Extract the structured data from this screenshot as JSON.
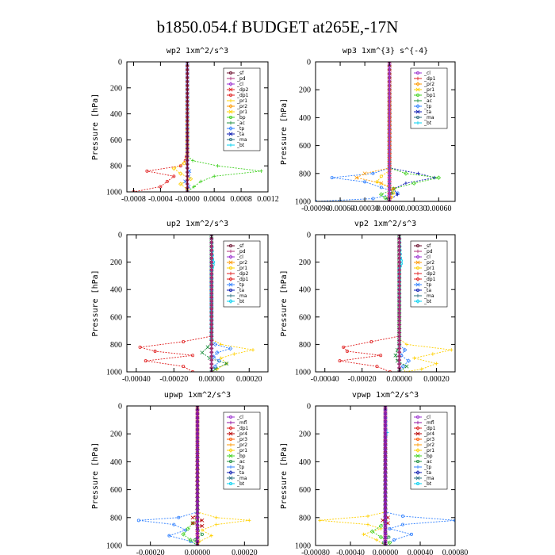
{
  "figure": {
    "title": "b1850.054.f  BUDGET at265E,-17N"
  },
  "colors": {
    "_sf": "#6a0d2b",
    "_pd": "#b0307a",
    "_cl": "#9b30d0",
    "_dp1": "#e02020",
    "_dp2": "#e02020",
    "_pr1": "#ffd000",
    "_pr2": "#ff9900",
    "_pr3": "#ff5a00",
    "_pr4": "#b80000",
    "_bp": "#40d020",
    "_bp1": "#40d020",
    "_ac": "#1f8f3f",
    "_tp": "#3080ff",
    "_ta": "#0a1ab0",
    "_ma": "#2a6f7f",
    "_bt": "#00d0f0",
    "_mfl": "#9010a0"
  },
  "chart_data": [
    {
      "type": "line",
      "title": "wp2   1xm^2/s^3",
      "ylabel": "Pressure [hPa]",
      "xlim": [
        -0.0009,
        0.0012
      ],
      "ylim": [
        1000,
        0
      ],
      "xticks": [
        -0.0008,
        -0.0004,
        0,
        0.0004,
        0.0008,
        0.0012
      ],
      "xtick_labels": [
        "-0.0008",
        "-0.0004",
        "-0.0000",
        "0.0004",
        "0.0008",
        "0.0012"
      ],
      "yticks": [
        0,
        200,
        400,
        600,
        800,
        1000
      ],
      "ytick_labels": [
        "0",
        "200",
        "400",
        "600",
        "800",
        "1000"
      ],
      "legend": [
        "_sf",
        "_pd",
        "_cl",
        "_dp2",
        "_dp1",
        "_pr1",
        "_pr2",
        "_pr1",
        "_bp",
        "_ac",
        "_tp",
        "_ta",
        "_ma",
        "_bt"
      ],
      "series": [
        {
          "name": "_dp1",
          "y": [
            0,
            700,
            760,
            800,
            840,
            880,
            920,
            960,
            1000
          ],
          "values": [
            0,
            0,
            -3e-05,
            -0.0001,
            -0.0006,
            -0.0002,
            -0.0003,
            -0.0004,
            -0.0008
          ]
        },
        {
          "name": "_bp",
          "y": [
            0,
            720,
            760,
            800,
            840,
            880,
            920,
            960,
            1000
          ],
          "values": [
            0,
            0,
            8e-05,
            0.00045,
            0.0011,
            0.0004,
            0.0002,
            0.0001,
            0
          ]
        },
        {
          "name": "_pr1",
          "y": [
            0,
            740,
            780,
            820,
            860,
            900,
            940,
            980,
            1000
          ],
          "values": [
            0,
            0,
            -5e-05,
            -0.0002,
            -0.0001,
            5e-05,
            -0.0001,
            0,
            0
          ]
        },
        {
          "name": "_tp",
          "y": [
            0,
            800,
            840,
            880,
            920,
            960,
            1000
          ],
          "values": [
            0,
            0,
            3e-05,
            2e-05,
            -3e-05,
            2e-05,
            0
          ]
        },
        {
          "name": "_pd",
          "y": [
            0,
            1000
          ],
          "values": [
            0,
            0
          ]
        },
        {
          "name": "_sf",
          "y": [
            0,
            1000
          ],
          "values": [
            0,
            0
          ]
        }
      ]
    },
    {
      "type": "line",
      "title": "wp3   1xm^{3} s^{-4}",
      "ylabel": "Pressure [hPa]",
      "xlim": [
        -0.0009,
        0.0008
      ],
      "ylim": [
        1000,
        0
      ],
      "xticks": [
        -0.0009,
        -0.0006,
        -0.0003,
        0,
        0.0003,
        0.0006
      ],
      "xtick_labels": [
        "-0.00090",
        "-0.00060",
        "-0.00030",
        "0.00000",
        "0.00030",
        "0.00060"
      ],
      "yticks": [
        0,
        200,
        400,
        600,
        800,
        1000
      ],
      "ytick_labels": [
        "0",
        "200",
        "400",
        "600",
        "800",
        "1000"
      ],
      "legend": [
        "_cl",
        "_dp1",
        "_pr2",
        "_pr1",
        "_bp1",
        "_ac",
        "_tp",
        "_ta",
        "_ma",
        "_bt"
      ],
      "series": [
        {
          "name": "_tp",
          "y": [
            0,
            760,
            800,
            830,
            860,
            900,
            940,
            980,
            1000
          ],
          "values": [
            0,
            0,
            -0.0002,
            -0.0007,
            -0.0003,
            -0.0001,
            0.0001,
            -0.0002,
            -0.0009
          ]
        },
        {
          "name": "_ta",
          "y": [
            0,
            760,
            800,
            830,
            870,
            910,
            950,
            990,
            1000
          ],
          "values": [
            0,
            0,
            0.00035,
            0.00055,
            0.0002,
            5e-05,
            0.0001,
            0,
            0
          ]
        },
        {
          "name": "_bp1",
          "y": [
            0,
            760,
            800,
            830,
            870,
            910,
            950,
            1000
          ],
          "values": [
            0,
            0,
            0.0002,
            0.0006,
            0.0003,
            5e-05,
            -0.0001,
            0
          ]
        },
        {
          "name": "_pr2",
          "y": [
            0,
            760,
            800,
            830,
            870,
            910,
            950,
            1000
          ],
          "values": [
            0,
            0,
            -0.0003,
            -0.0004,
            -0.0001,
            5e-05,
            0,
            0
          ]
        },
        {
          "name": "_pr1",
          "y": [
            0,
            780,
            820,
            860,
            900,
            940,
            1000
          ],
          "values": [
            0,
            0,
            -0.0001,
            -0.00015,
            0,
            5e-05,
            0
          ]
        },
        {
          "name": "_ac",
          "y": [
            0,
            900,
            940,
            980,
            1000
          ],
          "values": [
            0,
            0,
            3e-05,
            -3e-05,
            0
          ]
        },
        {
          "name": "_dp1",
          "y": [
            0,
            1000
          ],
          "values": [
            0,
            0
          ]
        },
        {
          "name": "_cl",
          "y": [
            0,
            1000
          ],
          "values": [
            0,
            0
          ]
        }
      ]
    },
    {
      "type": "line",
      "title": "up2   1xm^2/s^3",
      "ylabel": "Pressure [hPa]",
      "xlim": [
        -0.00045,
        0.0003
      ],
      "ylim": [
        1000,
        0
      ],
      "xticks": [
        -0.0004,
        -0.0002,
        0,
        0.0002
      ],
      "xtick_labels": [
        "-0.00040",
        "-0.00020",
        "0.00000",
        "0.00020"
      ],
      "yticks": [
        0,
        200,
        400,
        600,
        800,
        1000
      ],
      "ytick_labels": [
        "0",
        "200",
        "400",
        "600",
        "800",
        "1000"
      ],
      "legend": [
        "_sf",
        "_pd",
        "_cl",
        "_pr2",
        "_pr1",
        "_dp2",
        "_dp1",
        "_tp",
        "_ta",
        "_ma",
        "_bt"
      ],
      "series": [
        {
          "name": "_dp2",
          "y": [
            0,
            740,
            780,
            820,
            850,
            880,
            920,
            960,
            1000
          ],
          "values": [
            0,
            0,
            -0.00015,
            -0.00038,
            -0.0003,
            -0.0001,
            -0.00035,
            -0.00015,
            -0.0001
          ]
        },
        {
          "name": "_pr1",
          "y": [
            0,
            760,
            800,
            840,
            870,
            900,
            940,
            980,
            1000
          ],
          "values": [
            0,
            0,
            5e-05,
            0.00022,
            0.00012,
            5e-05,
            8e-05,
            3e-05,
            0
          ]
        },
        {
          "name": "_tp",
          "y": [
            0,
            760,
            800,
            830,
            860,
            890,
            920,
            960,
            1000
          ],
          "values": [
            0,
            0,
            2e-05,
            0.0001,
            3e-05,
            1e-05,
            4e-05,
            2e-05,
            0
          ]
        },
        {
          "name": "_ac",
          "y": [
            0,
            780,
            820,
            860,
            900,
            940,
            980,
            1000
          ],
          "values": [
            0,
            0,
            -2e-05,
            -5e-05,
            -1e-05,
            8e-05,
            2e-05,
            0
          ]
        },
        {
          "name": "_bt",
          "y": [
            0,
            180,
            200,
            220,
            240,
            260,
            1000
          ],
          "values": [
            0,
            5e-06,
            1e-05,
            8e-06,
            4e-06,
            0,
            0
          ]
        },
        {
          "name": "_sf",
          "y": [
            0,
            1000
          ],
          "values": [
            0,
            0
          ]
        },
        {
          "name": "_pd",
          "y": [
            0,
            1000
          ],
          "values": [
            0,
            0
          ]
        }
      ]
    },
    {
      "type": "line",
      "title": "vp2   1xm^2/s^3",
      "ylabel": "Pressure [hPa]",
      "xlim": [
        -0.00045,
        0.0003
      ],
      "ylim": [
        1000,
        0
      ],
      "xticks": [
        -0.0004,
        -0.0002,
        0,
        0.0002
      ],
      "xtick_labels": [
        "-0.00040",
        "-0.00020",
        "0.00000",
        "0.00020"
      ],
      "yticks": [
        0,
        200,
        400,
        600,
        800,
        1000
      ],
      "ytick_labels": [
        "0",
        "200",
        "400",
        "600",
        "800",
        "1000"
      ],
      "legend": [
        "_sf",
        "_pd",
        "_cl",
        "_pr2",
        "_pr1",
        "_dp2",
        "_dp1",
        "_tp",
        "_ta",
        "_ma",
        "_bt"
      ],
      "series": [
        {
          "name": "_dp2",
          "y": [
            0,
            740,
            780,
            820,
            850,
            880,
            920,
            960,
            1000
          ],
          "values": [
            0,
            0,
            -0.00015,
            -0.0003,
            -0.00028,
            -0.0001,
            -0.00032,
            -0.00012,
            -5e-05
          ]
        },
        {
          "name": "_pr1",
          "y": [
            0,
            760,
            800,
            840,
            870,
            900,
            940,
            980,
            1000
          ],
          "values": [
            0,
            0,
            4e-05,
            0.00028,
            0.00018,
            8e-05,
            0.0002,
            0.00012,
            3e-05
          ]
        },
        {
          "name": "_tp",
          "y": [
            0,
            800,
            840,
            880,
            920,
            960,
            1000
          ],
          "values": [
            0,
            0,
            3e-05,
            1e-05,
            5e-05,
            2e-05,
            0
          ]
        },
        {
          "name": "_ac",
          "y": [
            0,
            800,
            840,
            880,
            920,
            960,
            1000
          ],
          "values": [
            0,
            0,
            -1e-05,
            -2e-05,
            -1e-05,
            4e-05,
            0
          ]
        },
        {
          "name": "_bt",
          "y": [
            0,
            170,
            190,
            210,
            230,
            250,
            1000
          ],
          "values": [
            0,
            6e-06,
            1e-05,
            1e-05,
            5e-06,
            0,
            0
          ]
        },
        {
          "name": "_sf",
          "y": [
            0,
            1000
          ],
          "values": [
            0,
            0
          ]
        },
        {
          "name": "_pd",
          "y": [
            0,
            1000
          ],
          "values": [
            0,
            0
          ]
        }
      ]
    },
    {
      "type": "line",
      "title": "upwp   1xm^2/s^3",
      "ylabel": "Pressure [hPa]",
      "xlim": [
        -0.0003,
        0.0003
      ],
      "ylim": [
        1000,
        0
      ],
      "xticks": [
        -0.0002,
        0,
        0.0002
      ],
      "xtick_labels": [
        "-0.00020",
        "0.00000",
        "0.00020"
      ],
      "yticks": [
        0,
        200,
        400,
        600,
        800,
        1000
      ],
      "ytick_labels": [
        "0",
        "200",
        "400",
        "600",
        "800",
        "1000"
      ],
      "legend": [
        "_cl",
        "_mfl",
        "_dp1",
        "_pr4",
        "_pr3",
        "_pr2",
        "_pr1",
        "_bp",
        "_ac",
        "_tp",
        "_ta",
        "_ma",
        "_bt"
      ],
      "series": [
        {
          "name": "_tp",
          "y": [
            0,
            760,
            800,
            820,
            850,
            890,
            930,
            970,
            1000
          ],
          "values": [
            0,
            0,
            -8e-05,
            -0.00025,
            -0.0001,
            -5e-05,
            -0.00012,
            -3e-05,
            0
          ]
        },
        {
          "name": "_pr1",
          "y": [
            0,
            760,
            800,
            820,
            850,
            890,
            930,
            970,
            1000
          ],
          "values": [
            0,
            0,
            8e-05,
            0.00022,
            8e-05,
            2e-05,
            6e-05,
            1e-05,
            0
          ]
        },
        {
          "name": "_bp",
          "y": [
            0,
            800,
            840,
            880,
            920,
            960,
            1000
          ],
          "values": [
            0,
            0,
            -2e-05,
            -4e-05,
            -6e-05,
            -3e-05,
            0
          ]
        },
        {
          "name": "_pr4",
          "y": [
            0,
            780,
            800,
            820,
            840,
            860,
            880,
            1000
          ],
          "values": [
            0,
            0,
            -2e-05,
            2e-05,
            -2e-05,
            2e-05,
            0,
            0
          ]
        },
        {
          "name": "_ac",
          "y": [
            0,
            880,
            920,
            960,
            1000
          ],
          "values": [
            0,
            0,
            2e-05,
            -1e-05,
            0
          ]
        },
        {
          "name": "_cl",
          "y": [
            0,
            1000
          ],
          "values": [
            0,
            0
          ]
        },
        {
          "name": "_mfl",
          "y": [
            0,
            1000
          ],
          "values": [
            0,
            0
          ]
        }
      ]
    },
    {
      "type": "line",
      "title": "vpwp   1xm^2/s^3",
      "ylabel": "Pressure [hPa]",
      "xlim": [
        -0.0008,
        0.0008
      ],
      "ylim": [
        1000,
        0
      ],
      "xticks": [
        -0.0008,
        -0.0004,
        0,
        0.0004,
        0.0008
      ],
      "xtick_labels": [
        "-0.00080",
        "-0.00040",
        "0.00000",
        "0.00040",
        "0.00080"
      ],
      "yticks": [
        0,
        200,
        400,
        600,
        800,
        1000
      ],
      "ytick_labels": [
        "0",
        "200",
        "400",
        "600",
        "800",
        "1000"
      ],
      "legend": [
        "_cl",
        "_mfl",
        "_dp1",
        "_pr4",
        "_pr3",
        "_pr2",
        "_pr1",
        "_bp",
        "_ac",
        "_tp",
        "_ta",
        "_ma",
        "_bt"
      ],
      "series": [
        {
          "name": "_tp",
          "y": [
            0,
            760,
            790,
            820,
            850,
            880,
            920,
            960,
            1000
          ],
          "values": [
            0,
            0,
            0.0002,
            0.0008,
            0.0002,
            5e-05,
            0.0003,
            0.0001,
            0
          ]
        },
        {
          "name": "_pr1",
          "y": [
            0,
            760,
            790,
            820,
            850,
            880,
            920,
            960,
            1000
          ],
          "values": [
            0,
            0,
            -0.0002,
            -0.00075,
            -0.0002,
            -5e-05,
            -0.00025,
            -0.0001,
            0
          ]
        },
        {
          "name": "_bp",
          "y": [
            0,
            820,
            860,
            900,
            940,
            980,
            1000
          ],
          "values": [
            0,
            0,
            -5e-05,
            -0.00015,
            -5e-05,
            5e-05,
            0
          ]
        },
        {
          "name": "_pr4",
          "y": [
            0,
            780,
            800,
            820,
            840,
            860,
            1000
          ],
          "values": [
            0,
            0,
            3e-05,
            -3e-05,
            3e-05,
            0,
            0
          ]
        },
        {
          "name": "_ac",
          "y": [
            0,
            900,
            940,
            980,
            1000
          ],
          "values": [
            0,
            0,
            4e-05,
            -2e-05,
            0
          ]
        },
        {
          "name": "_bt",
          "y": [
            0,
            170,
            190,
            210,
            230,
            1000
          ],
          "values": [
            0,
            1e-05,
            2e-05,
            1e-05,
            0,
            0
          ]
        },
        {
          "name": "_cl",
          "y": [
            0,
            1000
          ],
          "values": [
            0,
            0
          ]
        },
        {
          "name": "_mfl",
          "y": [
            0,
            1000
          ],
          "values": [
            0,
            0
          ]
        }
      ]
    }
  ]
}
